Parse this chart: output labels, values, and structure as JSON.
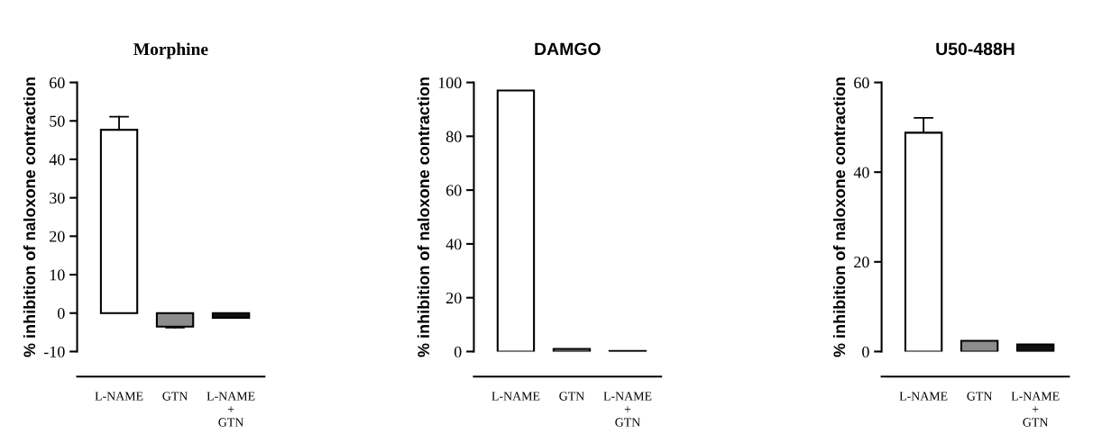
{
  "chart_data": [
    {
      "type": "bar",
      "title": "Morphine",
      "ylabel": "% inhibition of naloxone contraction",
      "categories": [
        "L-NAME",
        "GTN",
        "L-NAME\n+\nGTN"
      ],
      "values": [
        47.7,
        -3.5,
        -1.2
      ],
      "colors": [
        "#ffffff",
        "#8c8c8c",
        "#111111"
      ],
      "errors": [
        [
          47.7,
          51.1
        ],
        [
          -3.8,
          -3.5
        ],
        null
      ],
      "ylim": [
        -10,
        60
      ],
      "yticks": [
        -10,
        0,
        10,
        20,
        30,
        40,
        50,
        60
      ]
    },
    {
      "type": "bar",
      "title": "DAMGO",
      "ylabel": "% inhibition of naloxone contraction",
      "categories": [
        "L-NAME",
        "GTN",
        "L-NAME\n+\nGTN"
      ],
      "values": [
        97,
        1,
        0.2
      ],
      "colors": [
        "#ffffff",
        "#8c8c8c",
        "#111111"
      ],
      "ylim": [
        0,
        100
      ],
      "yticks": [
        0,
        20,
        40,
        60,
        80,
        100
      ]
    },
    {
      "type": "bar",
      "title": "U50-488H",
      "ylabel": "% inhibition of naloxone contraction",
      "categories": [
        "L-NAME",
        "GTN",
        "L-NAME\n+\nGTN"
      ],
      "values": [
        48.8,
        2.4,
        1.6
      ],
      "colors": [
        "#ffffff",
        "#8c8c8c",
        "#111111"
      ],
      "errors": [
        [
          48.8,
          52.1
        ],
        null,
        null
      ],
      "ylim": [
        0,
        60
      ],
      "yticks": [
        0,
        20,
        40,
        60
      ]
    }
  ]
}
